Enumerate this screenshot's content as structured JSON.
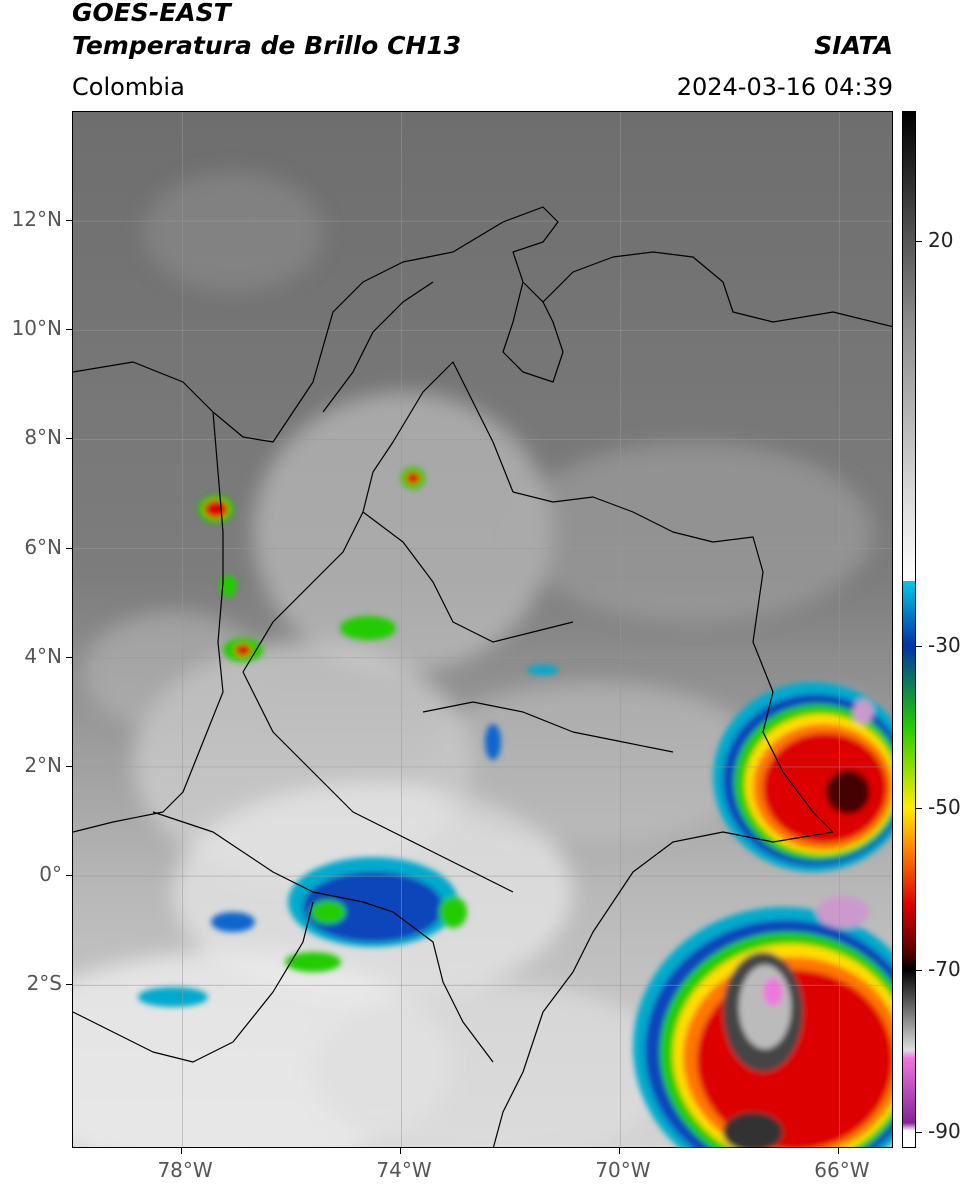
{
  "header": {
    "satellite": "GOES-EAST",
    "product": "Temperatura de Brillo CH13",
    "region": "Colombia",
    "agency": "SIATA",
    "timestamp": "2024-03-16 04:39"
  },
  "map": {
    "lon_range": [
      -80,
      -65
    ],
    "lat_range": [
      -5,
      14
    ],
    "lat_ticks": [
      {
        "value": 12,
        "label": "12°N"
      },
      {
        "value": 10,
        "label": "10°N"
      },
      {
        "value": 8,
        "label": "8°N"
      },
      {
        "value": 6,
        "label": "6°N"
      },
      {
        "value": 4,
        "label": "4°N"
      },
      {
        "value": 2,
        "label": "2°N"
      },
      {
        "value": 0,
        "label": "0°"
      },
      {
        "value": -2,
        "label": "2°S"
      }
    ],
    "lon_ticks": [
      {
        "value": -78,
        "label": "78°W"
      },
      {
        "value": -74,
        "label": "74°W"
      },
      {
        "value": -70,
        "label": "70°W"
      },
      {
        "value": -66,
        "label": "66°W"
      }
    ],
    "grid": true
  },
  "colorbar": {
    "range": [
      -92,
      36
    ],
    "ticks": [
      {
        "value": 20,
        "label": "20"
      },
      {
        "value": -30,
        "label": "-30"
      },
      {
        "value": -50,
        "label": "-50"
      },
      {
        "value": -70,
        "label": "-70"
      },
      {
        "value": -90,
        "label": "-90"
      }
    ],
    "colors": {
      "warm_top": "#000000",
      "gray_mid": "#8c8c8c",
      "white": "#ffffff",
      "cyan": "#00c8e6",
      "blue": "#0033aa",
      "green": "#22cc00",
      "yellow": "#ffee00",
      "orange": "#ff8800",
      "red": "#dd0000",
      "dark_red": "#550000",
      "pink": "#ee77dd",
      "purple": "#882299"
    }
  }
}
